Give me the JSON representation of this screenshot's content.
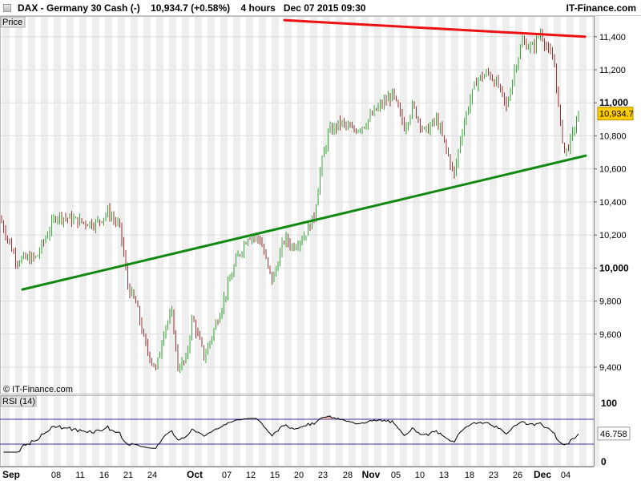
{
  "header": {
    "instrument": "DAX - Germany 30 Cash (-)",
    "quote": "10,934.7 (+0.58%)",
    "timeframe": "4 hours",
    "datetime": "Dec 07 2015 09:30",
    "brand": "IT-Finance.com"
  },
  "price_panel": {
    "label": "Price",
    "copyright": "© IT-Finance.com",
    "last_price": "10,934.7",
    "last_price_color": "#ffcc00"
  },
  "rsi_panel": {
    "label": "RSI (14)",
    "last_value": "46.758"
  },
  "colors": {
    "up_bar": "#33aa33",
    "down_bar": "#993333",
    "resistance_line": "#ee1111",
    "support_line": "#118811",
    "grid_band": "#eeeeee"
  },
  "chart_data": [
    {
      "type": "candlestick",
      "title": "DAX - Germany 30 Cash (-)",
      "ylabel": "Price",
      "ylim": [
        9300,
        11450
      ],
      "y_ticks": [
        "9,400",
        "9,600",
        "9,800",
        "10,000",
        "10,200",
        "10,400",
        "10,600",
        "10,800",
        "11,000",
        "11,200",
        "11,400"
      ],
      "y_tick_values": [
        9400,
        9600,
        9800,
        10000,
        10200,
        10400,
        10600,
        10800,
        11000,
        11200,
        11400
      ],
      "x_ticks": [
        "Sep",
        "08",
        "11",
        "16",
        "21",
        "24",
        "Oct",
        "07",
        "12",
        "15",
        "20",
        "23",
        "28",
        "Nov",
        "05",
        "10",
        "13",
        "18",
        "23",
        "26",
        "Dec",
        "04"
      ],
      "x_tick_bold": [
        "Sep",
        "Oct",
        "Nov",
        "Dec"
      ],
      "path": [
        [
          0,
          10300
        ],
        [
          20,
          10050
        ],
        [
          45,
          10060
        ],
        [
          70,
          10320
        ],
        [
          100,
          10280
        ],
        [
          120,
          10270
        ],
        [
          135,
          10340
        ],
        [
          150,
          10240
        ],
        [
          160,
          9880
        ],
        [
          170,
          9780
        ],
        [
          182,
          9520
        ],
        [
          195,
          9380
        ],
        [
          205,
          9640
        ],
        [
          215,
          9720
        ],
        [
          222,
          9400
        ],
        [
          232,
          9440
        ],
        [
          240,
          9700
        ],
        [
          255,
          9460
        ],
        [
          268,
          9640
        ],
        [
          280,
          9820
        ],
        [
          295,
          10050
        ],
        [
          310,
          10200
        ],
        [
          325,
          10170
        ],
        [
          335,
          9990
        ],
        [
          340,
          9920
        ],
        [
          355,
          10180
        ],
        [
          365,
          10130
        ],
        [
          380,
          10200
        ],
        [
          392,
          10310
        ],
        [
          400,
          10600
        ],
        [
          410,
          10820
        ],
        [
          425,
          10880
        ],
        [
          440,
          10830
        ],
        [
          455,
          10870
        ],
        [
          470,
          10960
        ],
        [
          490,
          11050
        ],
        [
          505,
          10850
        ],
        [
          515,
          10980
        ],
        [
          530,
          10820
        ],
        [
          545,
          10900
        ],
        [
          558,
          10700
        ],
        [
          567,
          10560
        ],
        [
          575,
          10800
        ],
        [
          585,
          10990
        ],
        [
          595,
          11140
        ],
        [
          610,
          11180
        ],
        [
          622,
          11100
        ],
        [
          632,
          10970
        ],
        [
          642,
          11200
        ],
        [
          652,
          11370
        ],
        [
          665,
          11330
        ],
        [
          675,
          11430
        ],
        [
          685,
          11300
        ],
        [
          692,
          11240
        ],
        [
          698,
          10910
        ],
        [
          705,
          10690
        ],
        [
          712,
          10770
        ],
        [
          722,
          10930
        ]
      ],
      "trendlines": [
        {
          "name": "resistance",
          "from": [
            355,
            11500
          ],
          "to": [
            730,
            11400
          ]
        },
        {
          "name": "support",
          "from": [
            28,
            9870
          ],
          "to": [
            731,
            10680
          ]
        }
      ],
      "last": 10934.7
    },
    {
      "type": "line",
      "title": "RSI (14)",
      "ylim": [
        0,
        100
      ],
      "y_ticks": [
        "0",
        "100"
      ],
      "y_tick_values": [
        0,
        100
      ],
      "levels": [
        30,
        70
      ],
      "last": 46.758
    }
  ]
}
